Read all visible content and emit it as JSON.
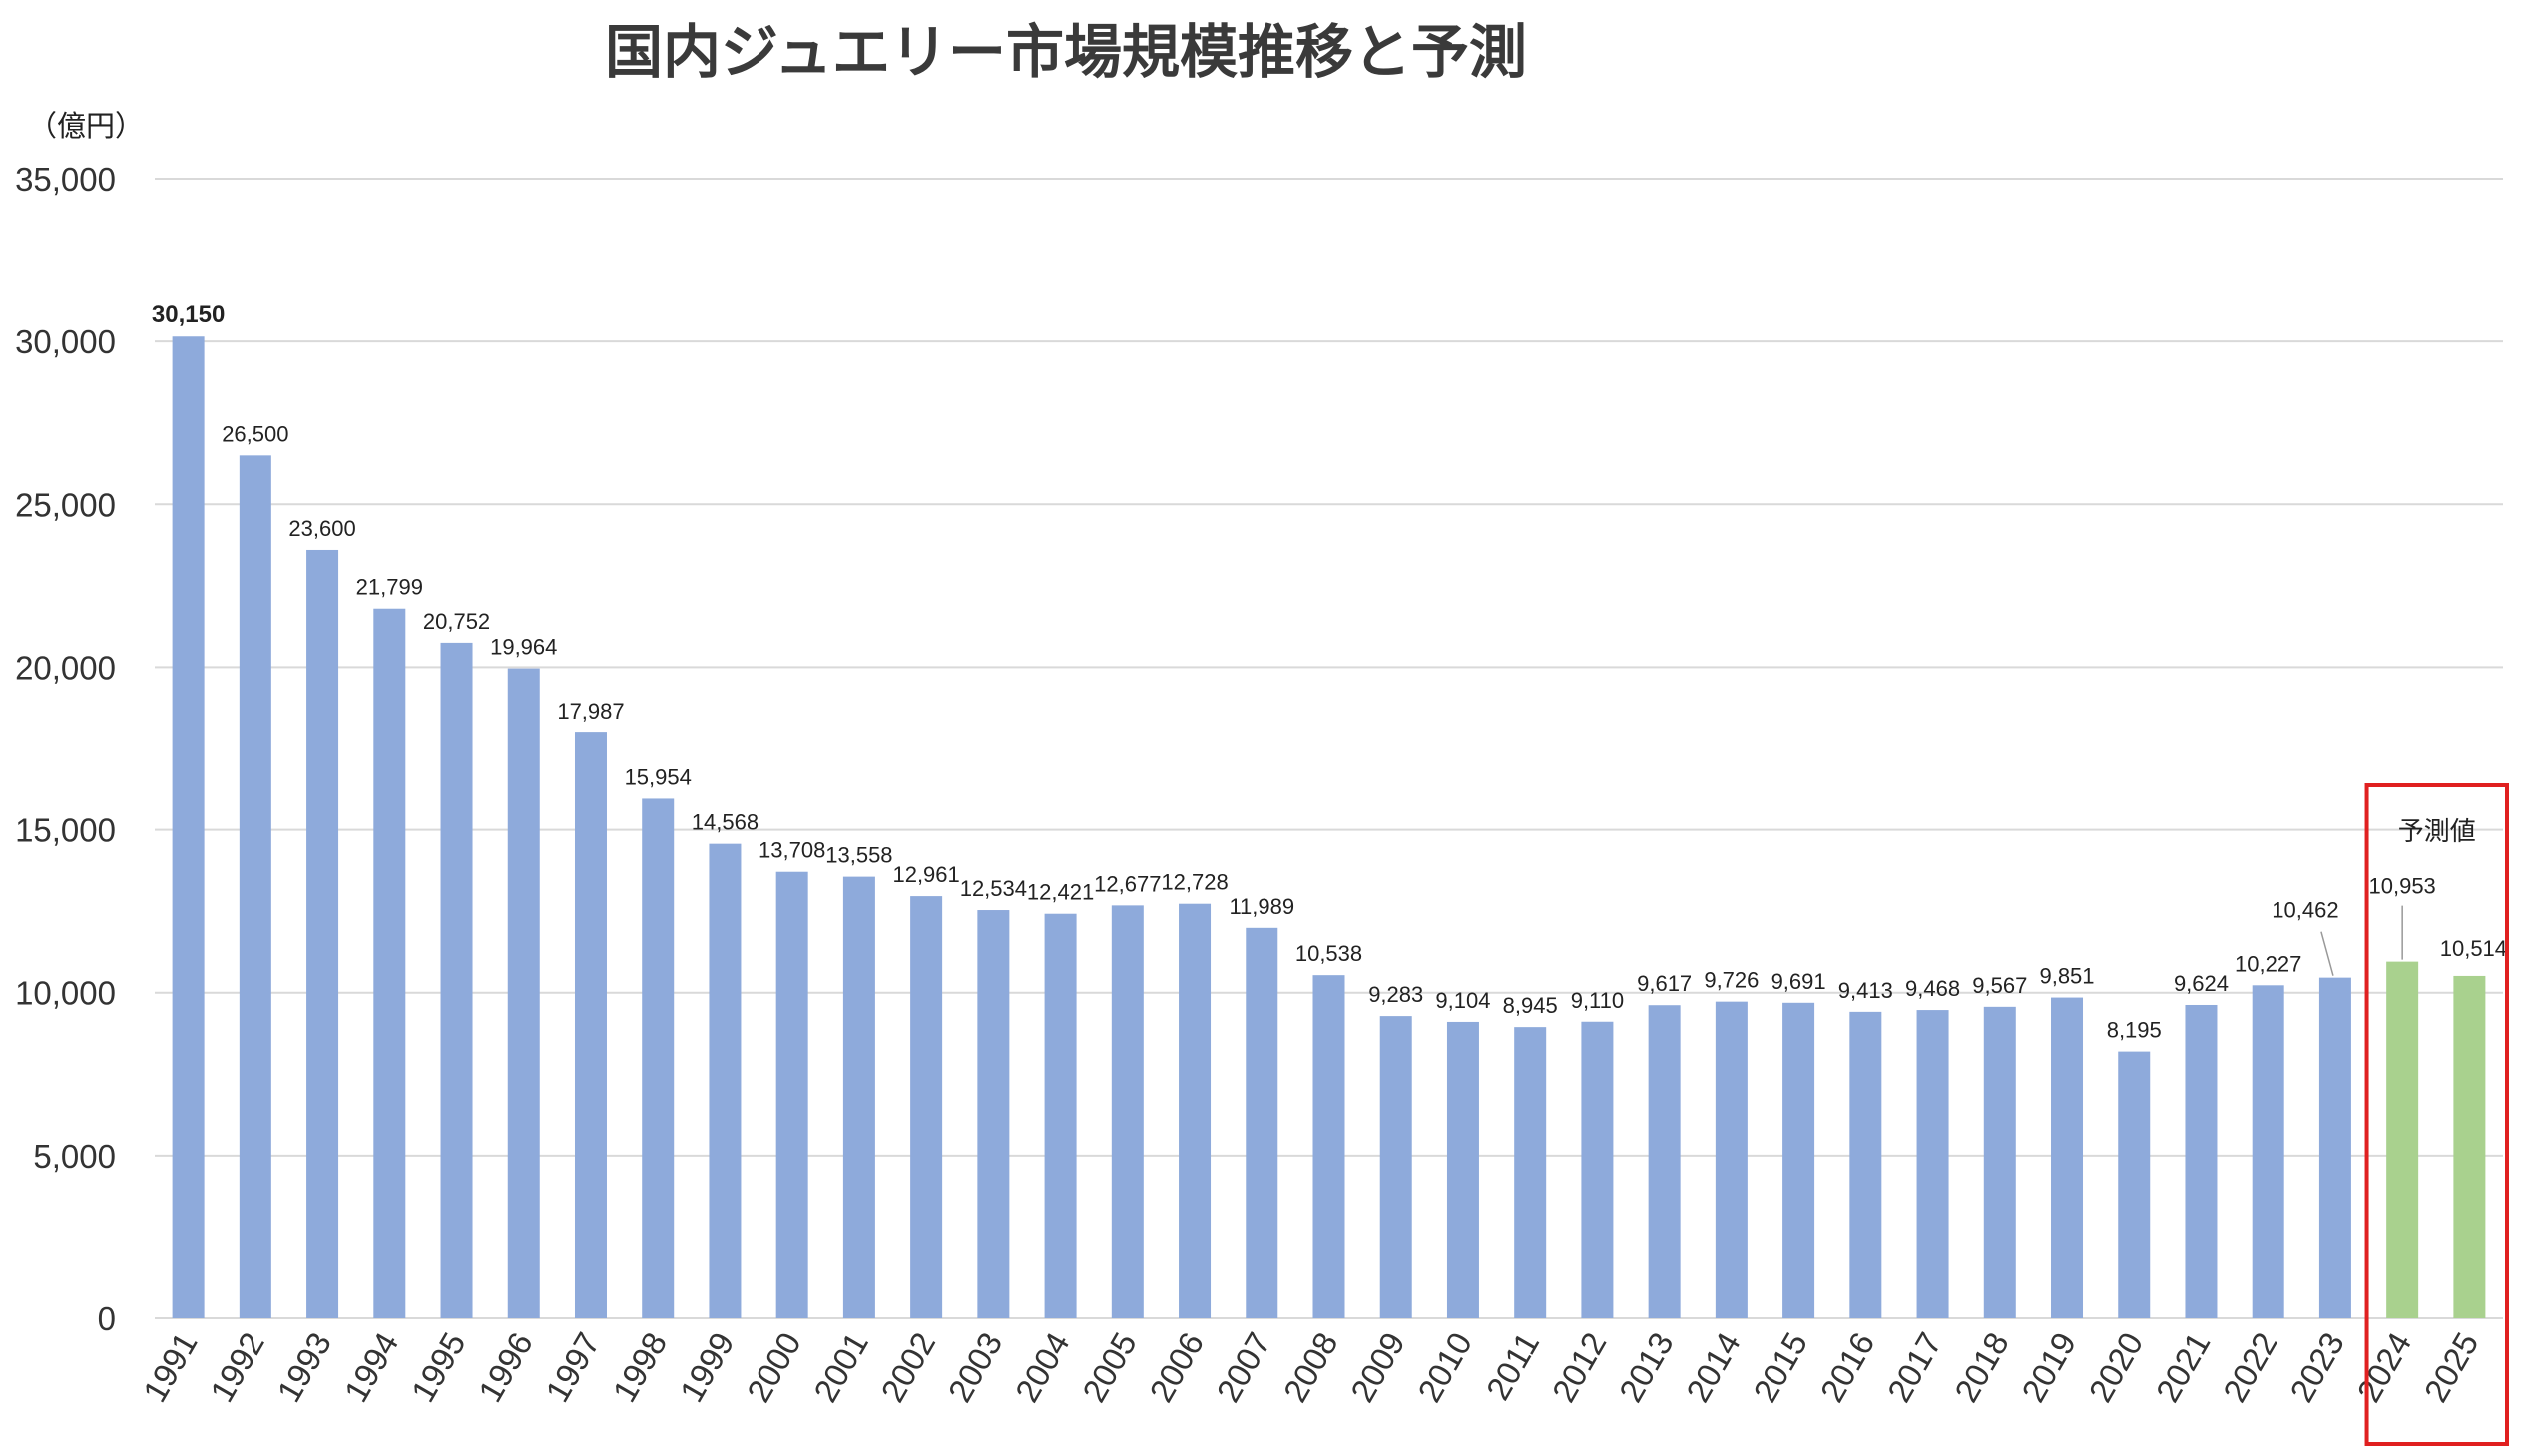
{
  "chart_data": {
    "type": "bar",
    "title": "国内ジュエリー市場規模推移と予測",
    "unit_label": "（億円）",
    "categories": [
      "1991",
      "1992",
      "1993",
      "1994",
      "1995",
      "1996",
      "1997",
      "1998",
      "1999",
      "2000",
      "2001",
      "2002",
      "2003",
      "2004",
      "2005",
      "2006",
      "2007",
      "2008",
      "2009",
      "2010",
      "2011",
      "2012",
      "2013",
      "2014",
      "2015",
      "2016",
      "2017",
      "2018",
      "2019",
      "2020",
      "2021",
      "2022",
      "2023",
      "2024",
      "2025"
    ],
    "values": [
      30150,
      26500,
      23600,
      21799,
      20752,
      19964,
      17987,
      15954,
      14568,
      13708,
      13558,
      12961,
      12534,
      12421,
      12677,
      12728,
      11989,
      10538,
      9283,
      9104,
      8945,
      9110,
      9617,
      9726,
      9691,
      9413,
      9468,
      9567,
      9851,
      8195,
      9624,
      10227,
      10462,
      10953,
      10514
    ],
    "value_labels": [
      "30,150",
      "26,500",
      "23,600",
      "21,799",
      "20,752",
      "19,964",
      "17,987",
      "15,954",
      "14,568",
      "13,708",
      "13,558",
      "12,961",
      "12,534",
      "12,421",
      "12,677",
      "12,728",
      "11,989",
      "10,538",
      "9,283",
      "9,104",
      "8,945",
      "9,110",
      "9,617",
      "9,726",
      "9,691",
      "9,413",
      "9,468",
      "9,567",
      "9,851",
      "8,195",
      "9,624",
      "10,227",
      "10,462",
      "10,953",
      "10,514"
    ],
    "forecast_categories": [
      "2024",
      "2025"
    ],
    "forecast_label": "予測値",
    "ylim": [
      0,
      35000
    ],
    "yticks": [
      0,
      5000,
      10000,
      15000,
      20000,
      25000,
      30000,
      35000
    ],
    "ytick_labels": [
      "0",
      "5,000",
      "10,000",
      "15,000",
      "20,000",
      "25,000",
      "30,000",
      "35,000"
    ],
    "grid": true,
    "legend": "none",
    "colors": {
      "actual": "#8eaadb",
      "forecast": "#a9d18e",
      "forecast_box": "#e02020",
      "grid": "#d9d9d9"
    }
  }
}
